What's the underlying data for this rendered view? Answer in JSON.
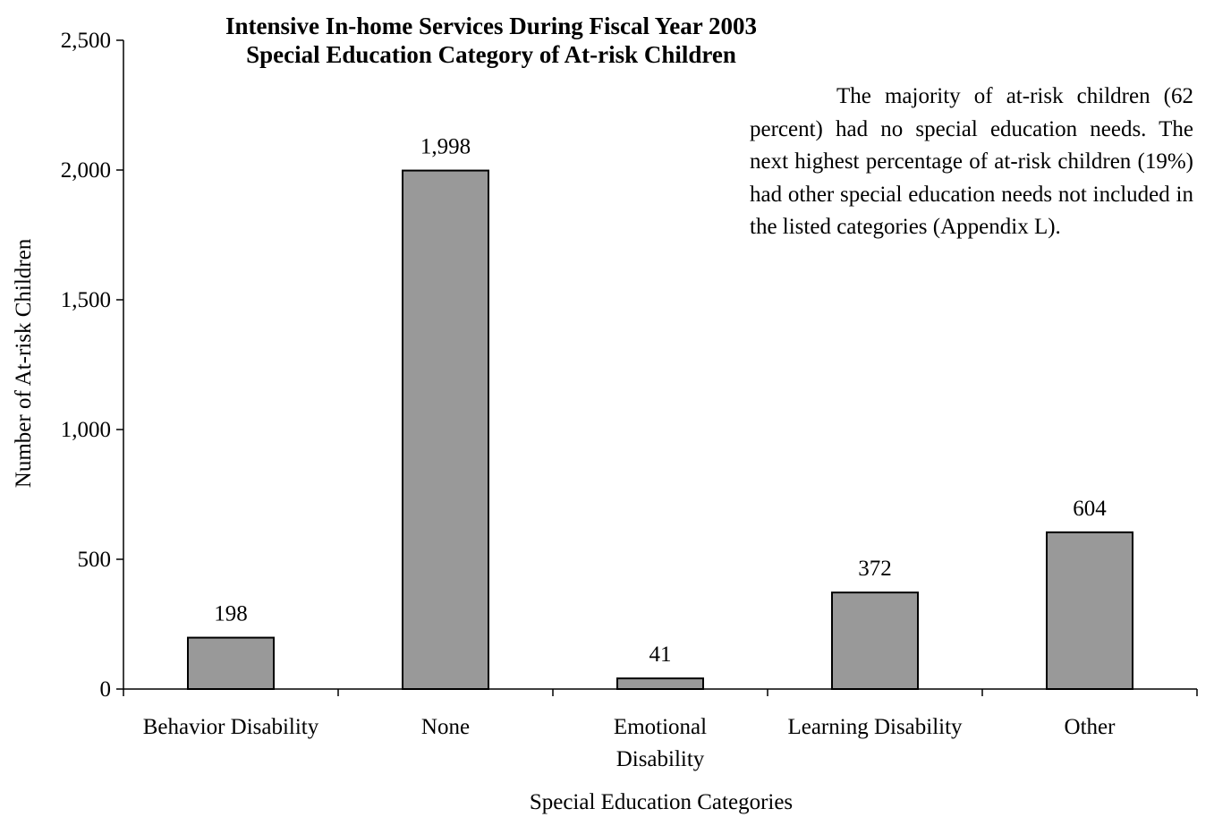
{
  "chart_data": {
    "type": "bar",
    "title": "Intensive In-home Services During Fiscal Year 2003",
    "subtitle": "Special Education Category of At-risk Children",
    "xlabel": "Special Education Categories",
    "ylabel": "Number of At-risk Children",
    "categories": [
      [
        "Behavior Disability"
      ],
      [
        "None"
      ],
      [
        "Emotional",
        "Disability"
      ],
      [
        "Learning Disability"
      ],
      [
        "Other"
      ]
    ],
    "values": [
      198,
      1998,
      41,
      372,
      604
    ],
    "data_labels": [
      "198",
      "1,998",
      "41",
      "372",
      "604"
    ],
    "ylim": [
      0,
      2500
    ],
    "yticks": [
      0,
      500,
      1000,
      1500,
      2000,
      2500
    ],
    "ytick_labels": [
      "0",
      "500",
      "1,000",
      "1,500",
      "2,000",
      "2,500"
    ],
    "grid": false,
    "bar_color": "#999999",
    "bar_edge_color": "#000000",
    "annotation": "The majority of at-risk children (62 percent) had no special education needs. The next highest percentage of at-risk children (19%) had other special education needs not included in the listed categories (Appendix L)."
  }
}
